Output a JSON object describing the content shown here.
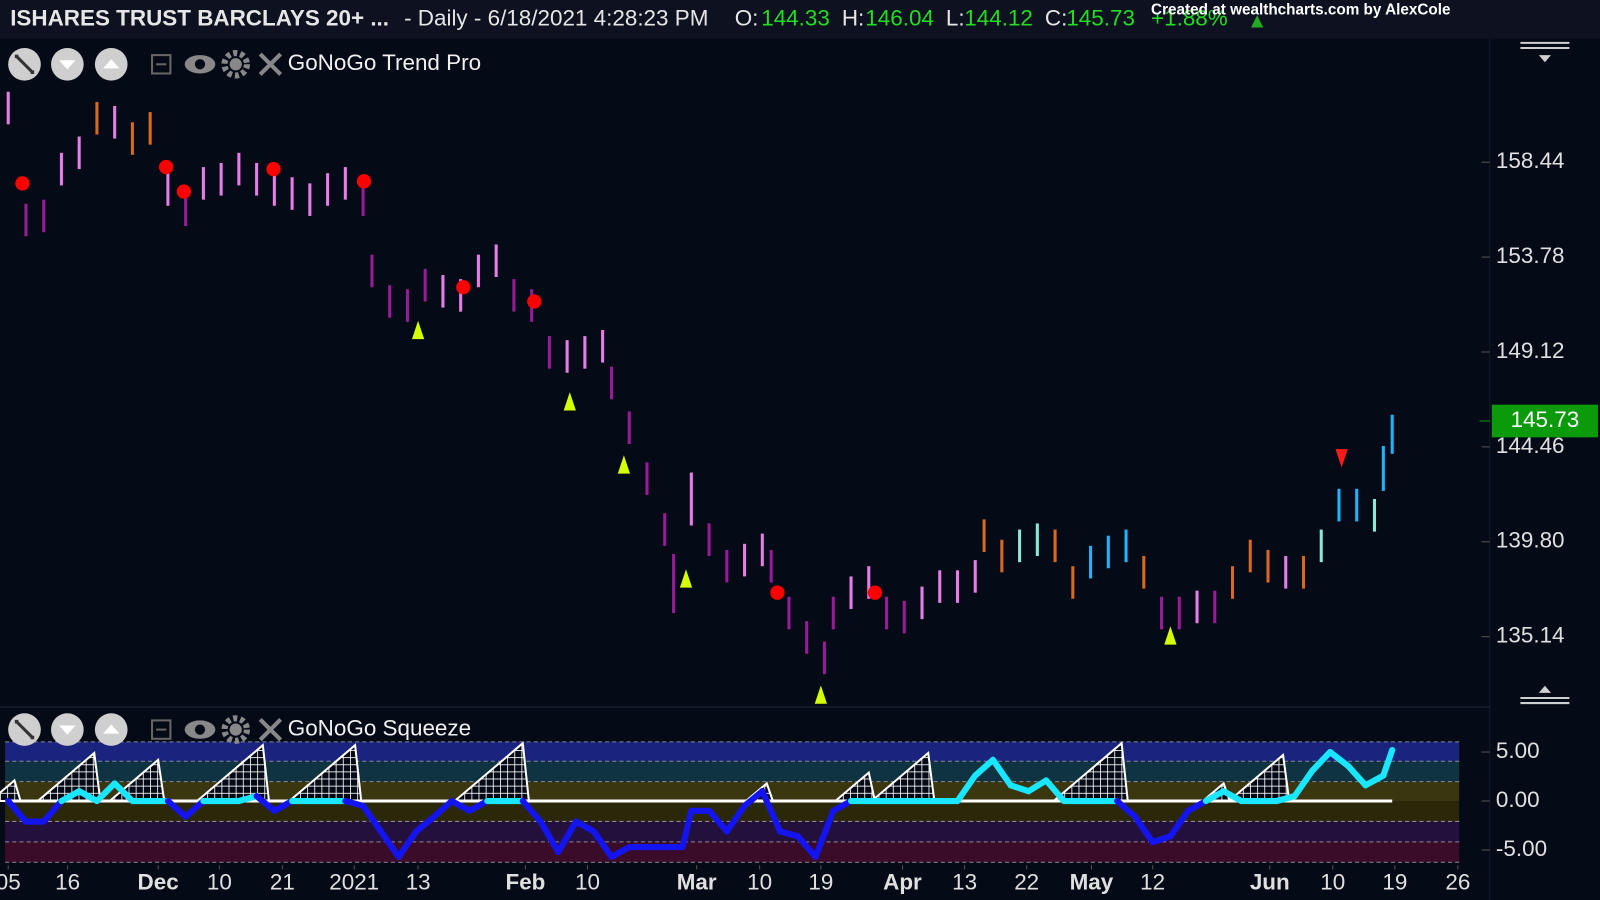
{
  "header": {
    "symbol": "ISHARES TRUST BARCLAYS 20+ ...",
    "interval": "- Daily - 6/18/2021 4:28:23 PM",
    "ohlc": [
      {
        "label": "O:",
        "value": 144.33
      },
      {
        "label": "H:",
        "value": 146.04
      },
      {
        "label": "L:",
        "value": 144.12
      },
      {
        "label": "C:",
        "value": 145.73
      }
    ],
    "change": "+1.88%",
    "credit": "Created at wealthcharts.com by AlexCole"
  },
  "chart_data": [
    {
      "type": "ohlc-bar",
      "title": "GoNoGo Trend Pro",
      "x": [
        0,
        2,
        4,
        6,
        8,
        10,
        12,
        14,
        16,
        18,
        20,
        22,
        24,
        26,
        28,
        30,
        32,
        34,
        36,
        38,
        40,
        41,
        43,
        45,
        47,
        49,
        51,
        53,
        55,
        57,
        59,
        61,
        63,
        65,
        67,
        68,
        70,
        72,
        74,
        75,
        77,
        79,
        81,
        83,
        85,
        86,
        88,
        90,
        92,
        93,
        95,
        97,
        99,
        101,
        103,
        105,
        107,
        109,
        110,
        112,
        114,
        116,
        118,
        120,
        122,
        124,
        126,
        128,
        130,
        132,
        134,
        136,
        138,
        140,
        142,
        144,
        146,
        148,
        150,
        152,
        154,
        155,
        156
      ],
      "high": [
        161.9,
        156.4,
        156.6,
        158.9,
        159.7,
        161.4,
        161.2,
        160.4,
        160.9,
        157.9,
        156.9,
        158.2,
        158.4,
        158.9,
        158.4,
        157.9,
        157.7,
        157.4,
        157.9,
        158.2,
        157.4,
        153.9,
        152.4,
        152.2,
        153.2,
        152.9,
        152.7,
        153.9,
        154.4,
        152.7,
        152.2,
        149.9,
        149.7,
        149.9,
        150.2,
        148.4,
        146.2,
        143.7,
        141.2,
        139.2,
        143.2,
        140.7,
        139.4,
        139.7,
        140.2,
        139.4,
        137.1,
        135.9,
        134.9,
        137.1,
        138.1,
        138.6,
        137.1,
        136.9,
        137.6,
        138.4,
        138.4,
        138.9,
        140.9,
        139.9,
        140.4,
        140.7,
        140.4,
        138.6,
        139.6,
        140.1,
        140.4,
        139.1,
        137.1,
        137.1,
        137.4,
        137.4,
        138.6,
        139.9,
        139.4,
        139.1,
        139.1,
        140.4,
        142.4,
        142.4,
        141.9,
        144.5,
        146.04
      ],
      "low": [
        160.3,
        154.8,
        155.0,
        157.3,
        158.1,
        159.8,
        159.6,
        158.8,
        159.3,
        156.3,
        155.3,
        156.6,
        156.8,
        157.3,
        156.8,
        156.3,
        156.1,
        155.8,
        156.3,
        156.6,
        155.8,
        152.3,
        150.8,
        150.6,
        151.6,
        151.3,
        151.1,
        152.3,
        152.8,
        151.1,
        150.6,
        148.3,
        148.1,
        148.3,
        148.6,
        146.8,
        144.6,
        142.1,
        139.6,
        136.3,
        140.6,
        139.1,
        137.8,
        138.1,
        138.6,
        137.8,
        135.5,
        134.3,
        133.3,
        135.5,
        136.5,
        137.0,
        135.5,
        135.3,
        136.0,
        136.8,
        136.8,
        137.3,
        139.3,
        138.3,
        138.8,
        139.1,
        138.8,
        137.0,
        138.0,
        138.5,
        138.8,
        137.5,
        135.5,
        135.5,
        135.8,
        135.8,
        137.0,
        138.3,
        137.8,
        137.5,
        137.5,
        138.8,
        140.8,
        140.8,
        140.3,
        142.3,
        144.12
      ],
      "colors": [
        "#e87de8",
        "#9a1a9a",
        "#9a1a9a",
        "#e87de8",
        "#e87de8",
        "#d86a1e",
        "#e87de8",
        "#d86a1e",
        "#d86a1e",
        "#e87de8",
        "#9a1a9a",
        "#e87de8",
        "#e87de8",
        "#e87de8",
        "#e87de8",
        "#e87de8",
        "#e87de8",
        "#e87de8",
        "#e87de8",
        "#e87de8",
        "#9a1a9a",
        "#9a1a9a",
        "#9a1a9a",
        "#9a1a9a",
        "#9a1a9a",
        "#e87de8",
        "#e87de8",
        "#e87de8",
        "#e87de8",
        "#9a1a9a",
        "#9a1a9a",
        "#9a1a9a",
        "#e87de8",
        "#e87de8",
        "#e87de8",
        "#9a1a9a",
        "#9a1a9a",
        "#9a1a9a",
        "#9a1a9a",
        "#9a1a9a",
        "#e87de8",
        "#9a1a9a",
        "#9a1a9a",
        "#e87de8",
        "#e87de8",
        "#9a1a9a",
        "#9a1a9a",
        "#9a1a9a",
        "#9a1a9a",
        "#9a1a9a",
        "#e87de8",
        "#e87de8",
        "#9a1a9a",
        "#9a1a9a",
        "#e87de8",
        "#e87de8",
        "#e87de8",
        "#e87de8",
        "#d86a1e",
        "#d86a1e",
        "#8ee8d8",
        "#8ee8d8",
        "#d86a1e",
        "#d86a1e",
        "#1eb4ff",
        "#1eb4ff",
        "#1eb4ff",
        "#d86a1e",
        "#9a1a9a",
        "#9a1a9a",
        "#e87de8",
        "#9a1a9a",
        "#d86a1e",
        "#d86a1e",
        "#d86a1e",
        "#e87de8",
        "#d86a1e",
        "#8ee8d8",
        "#1eb4ff",
        "#1eb4ff",
        "#8ee8d8",
        "#1eb4ff",
        "#1eb4ff"
      ],
      "markers": {
        "dots": {
          "color": "#ff0000",
          "x": [
            1.6,
            17.8,
            19.8,
            29.9,
            40.1,
            51.3,
            59.3,
            86.7,
            97.7
          ],
          "values": [
            157.4,
            158.2,
            157.0,
            158.1,
            157.5,
            152.3,
            151.6,
            137.3,
            137.3
          ]
        },
        "up_triangles": {
          "color": "#d4ff00",
          "x": [
            46.2,
            63.3,
            69.4,
            76.4,
            91.6,
            131
          ],
          "values": [
            150.2,
            146.7,
            143.6,
            138.0,
            132.3,
            135.2
          ]
        },
        "down_triangles": {
          "color": "#ff1a1a",
          "x": [
            150.3
          ],
          "values": [
            143.9
          ]
        }
      },
      "last_price": 145.73,
      "last_price_color": "#0a9a0a",
      "xlim": [
        -0.35,
        167.0
      ],
      "ylim": [
        131.83,
        164.4
      ],
      "yticks": [
        135.14,
        {
          "value": 139.8,
          "label": "139.80"
        },
        144.46,
        149.12,
        153.78,
        158.44
      ]
    },
    {
      "type": "squeeze",
      "title": "GoNoGo Squeeze",
      "x": [
        0,
        2,
        4,
        6,
        8,
        10,
        12,
        14,
        16,
        18,
        20,
        22,
        24,
        26,
        28,
        30,
        32,
        34,
        36,
        38,
        40,
        42,
        44,
        46,
        48,
        50,
        52,
        54,
        56,
        58,
        60,
        62,
        64,
        66,
        68,
        70,
        72,
        74,
        76,
        77,
        79,
        81,
        83,
        85,
        87,
        89,
        91,
        93,
        95,
        97,
        99,
        101,
        103,
        105,
        107,
        109,
        111,
        113,
        115,
        117,
        119,
        121,
        123,
        125,
        127,
        129,
        131,
        133,
        135,
        137,
        139,
        141,
        143,
        145,
        147,
        149,
        151,
        153,
        155,
        156
      ],
      "values": [
        0,
        -2.1,
        -2.1,
        0,
        1.0,
        0,
        1.8,
        0,
        0,
        0,
        -1.6,
        0,
        0,
        0,
        0.5,
        -1.0,
        0,
        0,
        0,
        0,
        -0.5,
        -3.1,
        -5.7,
        -3.1,
        -1.6,
        0,
        -1.0,
        0,
        0,
        0,
        -2.1,
        -5.2,
        -2.1,
        -3.1,
        -5.7,
        -4.7,
        -4.7,
        -4.7,
        -4.7,
        -1.0,
        -1.0,
        -3.1,
        -0.5,
        1.0,
        -3.1,
        -3.6,
        -5.7,
        -1.0,
        0,
        0,
        0,
        0,
        0,
        0,
        0,
        2.6,
        4.2,
        1.6,
        1.0,
        2.1,
        0,
        0,
        0,
        0,
        -1.6,
        -4.2,
        -3.6,
        -1.0,
        0,
        1.0,
        0,
        0,
        0,
        0.5,
        3.1,
        5.0,
        3.6,
        1.6,
        2.6,
        5.2
      ],
      "positive_color": "#19e6ff",
      "negative_color": "#1414f0",
      "squeeze": {
        "x": [
          0.7,
          9.7,
          16.9,
          28.7,
          39.1,
          58.0,
          85.5,
          97.0,
          103.7,
          125.5,
          137.0,
          143.7
        ],
        "values": [
          2.1,
          4.9,
          4.2,
          5.7,
          5.7,
          5.9,
          1.8,
          2.9,
          4.9,
          5.9,
          1.8,
          4.7
        ]
      },
      "xlim": [
        -0.35,
        167.0
      ],
      "ylim": [
        -6.25,
        6.04
      ],
      "yticks": [
        {
          "value": -5,
          "label": "-5.00"
        },
        {
          "value": 0,
          "label": "0.00"
        },
        {
          "value": 5,
          "label": "5.00"
        }
      ],
      "xticks": [
        {
          "value": 0,
          "label": "05"
        },
        {
          "value": 6.7,
          "label": "16"
        },
        {
          "value": 16.9,
          "label": "Dec"
        },
        {
          "value": 23.8,
          "label": "10"
        },
        {
          "value": 30.9,
          "label": "21"
        },
        {
          "value": 39,
          "label": "2021"
        },
        {
          "value": 46.2,
          "label": "13"
        },
        {
          "value": 58.3,
          "label": "Feb"
        },
        {
          "value": 65.3,
          "label": "10"
        },
        {
          "value": 77.6,
          "label": "Mar"
        },
        {
          "value": 84.7,
          "label": "10"
        },
        {
          "value": 91.6,
          "label": "19"
        },
        {
          "value": 100.8,
          "label": "Apr"
        },
        {
          "value": 107.8,
          "label": "13"
        },
        {
          "value": 114.8,
          "label": "22"
        },
        {
          "value": 122.1,
          "label": "May"
        },
        {
          "value": 129,
          "label": "12"
        },
        {
          "value": 142.2,
          "label": "Jun"
        },
        {
          "value": 149.3,
          "label": "10"
        },
        {
          "value": 156.3,
          "label": "19"
        },
        {
          "value": 163.4,
          "label": "26"
        }
      ]
    }
  ]
}
